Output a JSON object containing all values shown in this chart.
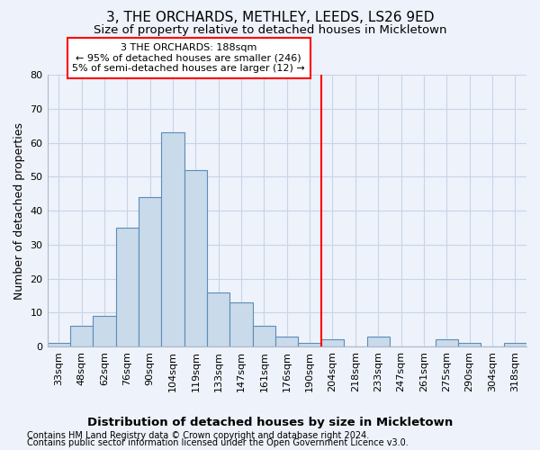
{
  "title": "3, THE ORCHARDS, METHLEY, LEEDS, LS26 9ED",
  "subtitle": "Size of property relative to detached houses in Mickletown",
  "xlabel": "Distribution of detached houses by size in Mickletown",
  "ylabel": "Number of detached properties",
  "footer_line1": "Contains HM Land Registry data © Crown copyright and database right 2024.",
  "footer_line2": "Contains public sector information licensed under the Open Government Licence v3.0.",
  "bins": [
    "33sqm",
    "48sqm",
    "62sqm",
    "76sqm",
    "90sqm",
    "104sqm",
    "119sqm",
    "133sqm",
    "147sqm",
    "161sqm",
    "176sqm",
    "190sqm",
    "204sqm",
    "218sqm",
    "233sqm",
    "247sqm",
    "261sqm",
    "275sqm",
    "290sqm",
    "304sqm",
    "318sqm"
  ],
  "values": [
    1,
    6,
    9,
    35,
    44,
    63,
    52,
    16,
    13,
    6,
    3,
    1,
    2,
    0,
    3,
    0,
    0,
    2,
    1,
    0,
    1
  ],
  "bar_color": "#c9daea",
  "bar_edge_color": "#5b8db8",
  "vline_x_bin": 11,
  "vline_color": "red",
  "annotation_line1": "3 THE ORCHARDS: 188sqm",
  "annotation_line2": "← 95% of detached houses are smaller (246)",
  "annotation_line3": "5% of semi-detached houses are larger (12) →",
  "annotation_box_color": "white",
  "annotation_box_edge": "red",
  "ylim": [
    0,
    80
  ],
  "yticks": [
    0,
    10,
    20,
    30,
    40,
    50,
    60,
    70,
    80
  ],
  "grid_color": "#c8d4e8",
  "background_color": "#eef2fa",
  "title_fontsize": 11,
  "subtitle_fontsize": 9.5,
  "ylabel_fontsize": 9,
  "xlabel_fontsize": 9.5,
  "tick_fontsize": 8,
  "annotation_fontsize": 8,
  "footer_fontsize": 7
}
